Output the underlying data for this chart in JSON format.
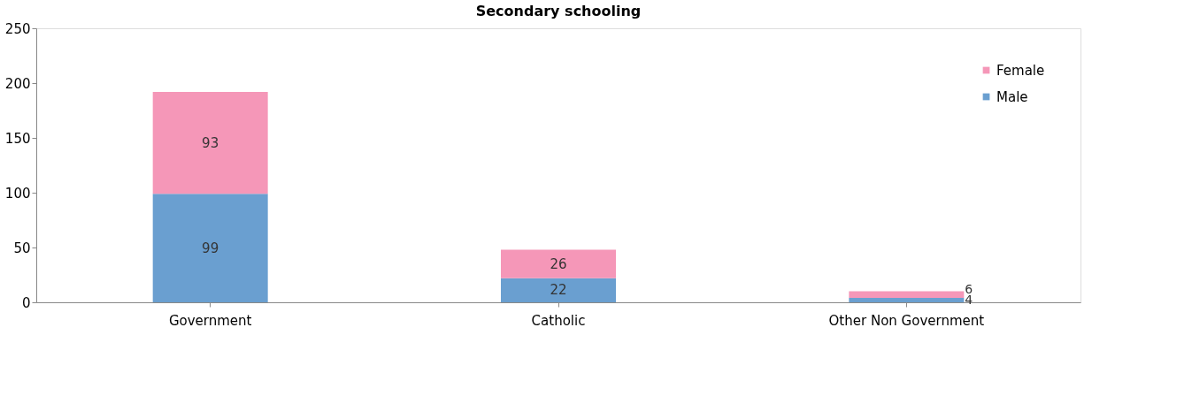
{
  "chart_data": {
    "type": "bar",
    "title": "Secondary schooling",
    "categories": [
      "Government",
      "Catholic",
      "Other Non Government"
    ],
    "series": [
      {
        "name": "Male",
        "color": "#6a9fd0",
        "values": [
          99,
          22,
          4
        ]
      },
      {
        "name": "Female",
        "color": "#f597b8",
        "values": [
          93,
          26,
          6
        ]
      }
    ],
    "stacked": true,
    "ylim": [
      0,
      250
    ],
    "yticks": [
      0,
      50,
      100,
      150,
      200,
      250
    ],
    "grid": false,
    "legend": "top right",
    "data_labels": true
  }
}
